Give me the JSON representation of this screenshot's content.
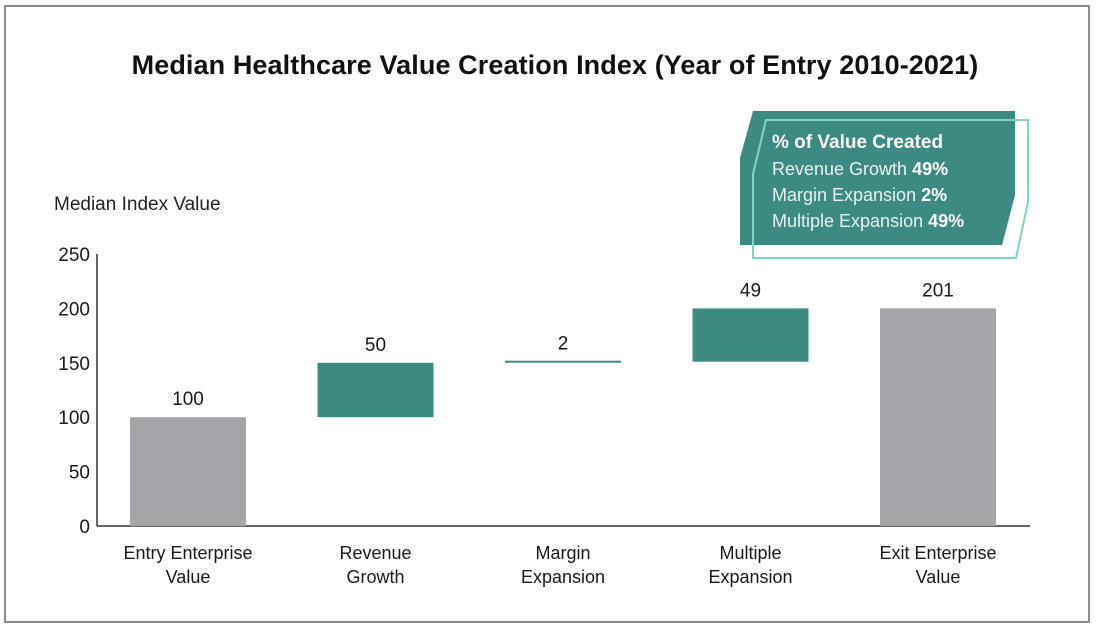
{
  "chart_data": {
    "type": "bar",
    "title": "Median Healthcare Value Creation Index  (Year of Entry 2010-2021)",
    "ylabel": "Median Index Value",
    "ylim": [
      0,
      250
    ],
    "yticks": [
      "0",
      "50",
      "100",
      "150",
      "200",
      "250"
    ],
    "categories": [
      "Entry Enterprise Value",
      "Revenue Growth",
      "Margin Expansion",
      "Multiple Expansion",
      "Exit Enterprise Value"
    ],
    "category_lines": [
      [
        "Entry Enterprise",
        "Value"
      ],
      [
        "Revenue",
        "Growth"
      ],
      [
        "Margin",
        "Expansion"
      ],
      [
        "Multiple",
        "Expansion"
      ],
      [
        "Exit Enterprise",
        "Value"
      ]
    ],
    "bars": [
      {
        "kind": "total",
        "start": 0,
        "end": 100,
        "label": "100"
      },
      {
        "kind": "change",
        "start": 100,
        "end": 150,
        "label": "50"
      },
      {
        "kind": "change",
        "start": 150,
        "end": 151,
        "label": "2"
      },
      {
        "kind": "change",
        "start": 151,
        "end": 200,
        "label": "49"
      },
      {
        "kind": "total",
        "start": 0,
        "end": 200,
        "label": "201"
      }
    ],
    "colors": {
      "total": "#a3a5a8",
      "change": "#3d8a82",
      "axis": "#333333",
      "text": "#1a1a1a"
    },
    "grid": false,
    "legend": "none"
  },
  "callout": {
    "heading": "% of Value Created",
    "items": [
      {
        "label": "Revenue Growth",
        "value": "49%"
      },
      {
        "label": "Margin Expansion",
        "value": "2%"
      },
      {
        "label": "Multiple Expansion",
        "value": "49%"
      }
    ],
    "fill_color": "#3d8a82",
    "outline_color": "#7fd3cb"
  }
}
